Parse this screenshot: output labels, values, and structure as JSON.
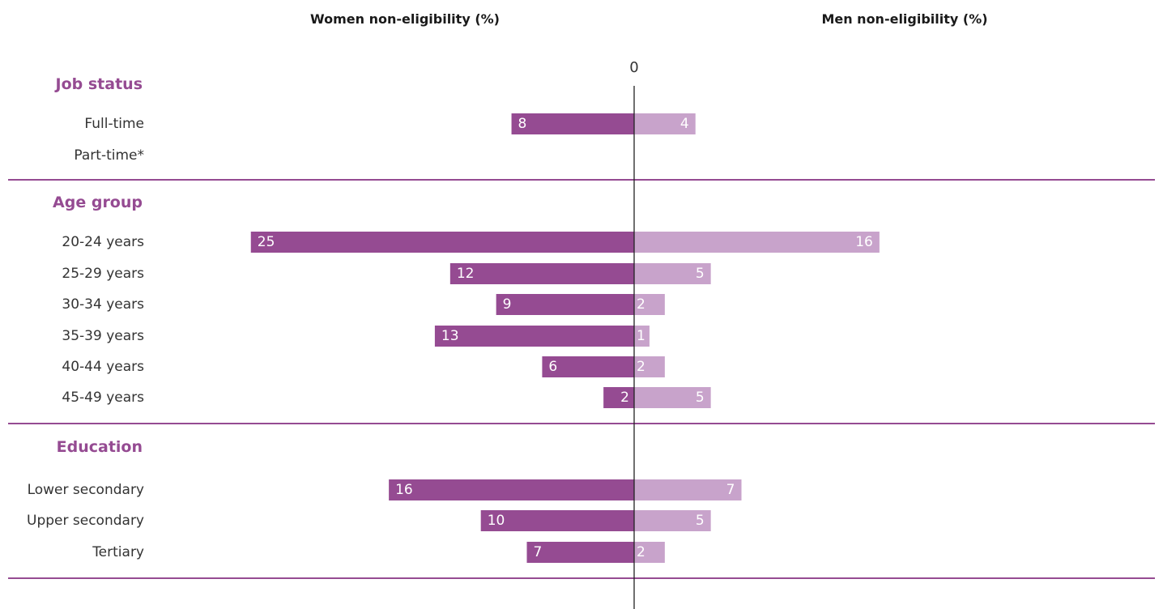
{
  "chart_data": {
    "type": "bar",
    "orientation": "horizontal-diverging",
    "headers": {
      "left": "Women non-eligibility (%)",
      "right": "Men non-eligibility (%)"
    },
    "zero_label": "0",
    "axis_max": 25,
    "groups": [
      {
        "title": "Job status",
        "rows": [
          {
            "label": "Full-time",
            "women": 8,
            "men": 4
          },
          {
            "label": "Part-time*",
            "women": null,
            "men": null
          }
        ]
      },
      {
        "title": "Age group",
        "rows": [
          {
            "label": "20-24 years",
            "women": 25,
            "men": 16
          },
          {
            "label": "25-29 years",
            "women": 12,
            "men": 5
          },
          {
            "label": "30-34 years",
            "women": 9,
            "men": 2
          },
          {
            "label": "35-39 years",
            "women": 13,
            "men": 1
          },
          {
            "label": "40-44 years",
            "women": 6,
            "men": 2
          },
          {
            "label": "45-49 years",
            "women": 2,
            "men": 5
          }
        ]
      },
      {
        "title": "Education",
        "rows": [
          {
            "label": "Lower secondary",
            "women": 16,
            "men": 7
          },
          {
            "label": "Upper secondary",
            "women": 10,
            "men": 5
          },
          {
            "label": "Tertiary",
            "women": 7,
            "men": 2
          }
        ]
      }
    ]
  },
  "colors": {
    "women": "#954b92",
    "men": "#c8a3cb",
    "group_title": "#954b92",
    "separator": "#954b92",
    "axis": "#222222"
  }
}
